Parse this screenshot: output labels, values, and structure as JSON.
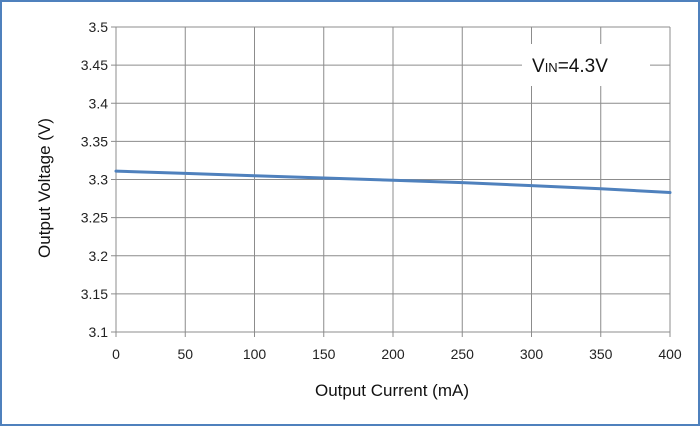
{
  "chart_data": {
    "type": "line",
    "title": "",
    "xlabel": "Output Current (mA)",
    "ylabel": "Output Voltage (V)",
    "xlim": [
      0,
      400
    ],
    "ylim": [
      3.1,
      3.5
    ],
    "x_ticks": [
      0,
      50,
      100,
      150,
      200,
      250,
      300,
      350,
      400
    ],
    "y_ticks": [
      3.1,
      3.15,
      3.2,
      3.25,
      3.3,
      3.35,
      3.4,
      3.45,
      3.5
    ],
    "x_tick_labels": [
      "0",
      "50",
      "100",
      "150",
      "200",
      "250",
      "300",
      "350",
      "400"
    ],
    "y_tick_labels": [
      "3.1",
      "3.15",
      "3.2",
      "3.25",
      "3.3",
      "3.35",
      "3.4",
      "3.45",
      "3.5"
    ],
    "grid": true,
    "annotation": {
      "main": "V",
      "sub": "IN",
      "rest": "=4.3V"
    },
    "series": [
      {
        "color": "#4f81bd",
        "x": [
          0,
          50,
          100,
          150,
          200,
          250,
          300,
          350,
          400
        ],
        "y": [
          3.311,
          3.308,
          3.305,
          3.302,
          3.299,
          3.296,
          3.292,
          3.288,
          3.283
        ]
      }
    ]
  }
}
